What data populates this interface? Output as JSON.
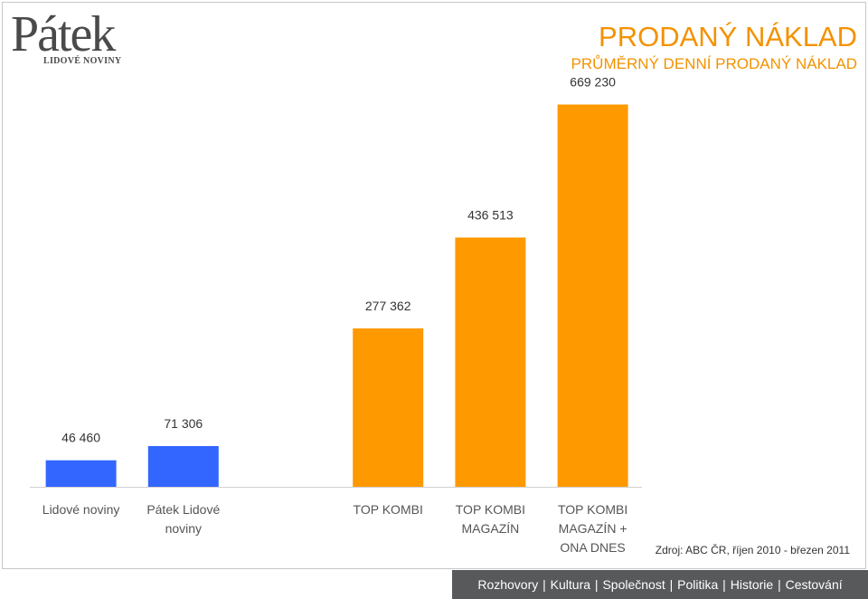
{
  "logo": {
    "main": "Pátek",
    "sub": "LIDOVÉ NOVINY"
  },
  "title": {
    "main": "PRODANÝ NÁKLAD",
    "sub": "PRŮMĚRNÝ DENNÍ PRODANÝ NÁKLAD"
  },
  "source": "Zdroj: ABC ČR, říjen 2010 - březen 2011",
  "footer": {
    "items": [
      "Rozhovory",
      "Kultura",
      "Společnost",
      "Politika",
      "Historie",
      "Cestování"
    ]
  },
  "colors": {
    "blue": "#3366ff",
    "orange": "#ff9900",
    "title": "#f39200",
    "footer_bg": "#58595b"
  },
  "chart_data": {
    "type": "bar",
    "title": "PRODANÝ NÁKLAD",
    "subtitle": "PRŮMĚRNÝ DENNÍ PRODANÝ NÁKLAD",
    "categories": [
      "Lidové noviny",
      "Pátek Lidové noviny",
      "",
      "TOP KOMBI",
      "TOP KOMBI MAGAZÍN",
      "TOP KOMBI MAGAZÍN + ONA DNES"
    ],
    "category_lines": [
      [
        "Lidové noviny"
      ],
      [
        "Pátek Lidové",
        "noviny"
      ],
      [],
      [
        "TOP KOMBI"
      ],
      [
        "TOP KOMBI",
        "MAGAZÍN"
      ],
      [
        "TOP KOMBI",
        "MAGAZÍN +",
        "ONA DNES"
      ]
    ],
    "values": [
      46460,
      71306,
      null,
      277362,
      436513,
      669230
    ],
    "value_labels": [
      "46 460",
      "71 306",
      "",
      "277 362",
      "436 513",
      "669 230"
    ],
    "bar_colors": [
      "#3366ff",
      "#3366ff",
      null,
      "#ff9900",
      "#ff9900",
      "#ff9900"
    ],
    "ylim": [
      0,
      800000
    ],
    "grid": false,
    "legend": "none"
  }
}
